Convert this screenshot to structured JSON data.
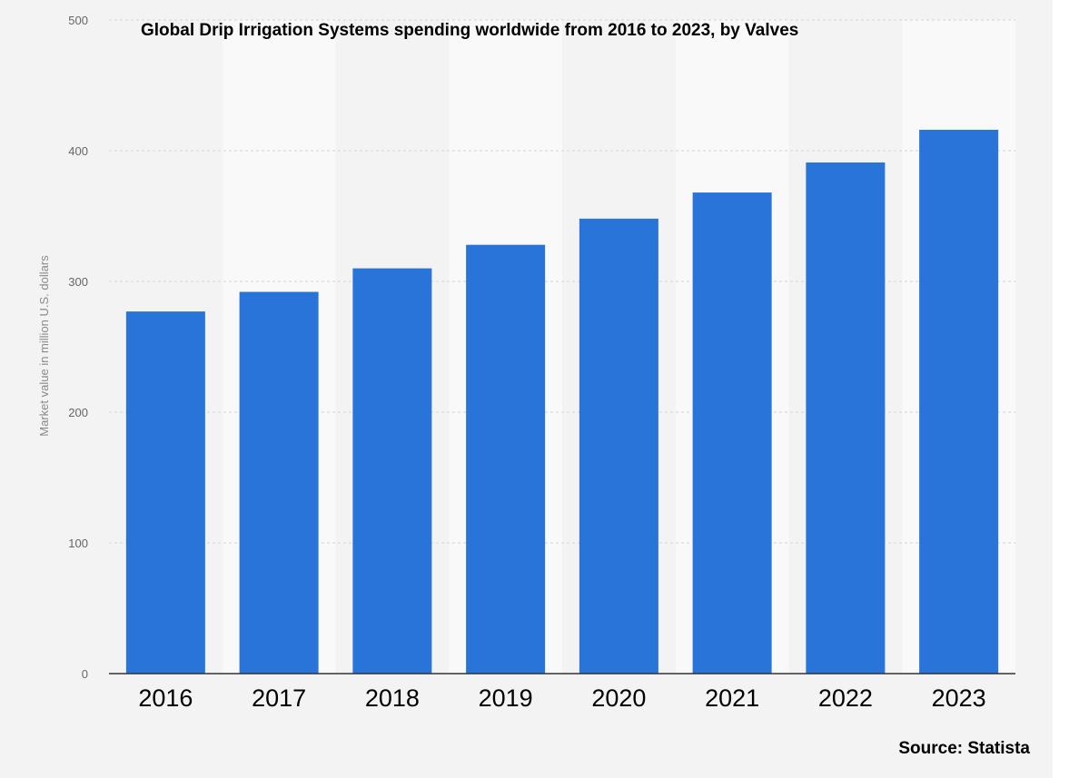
{
  "chart_data": {
    "type": "bar",
    "title": "Global Drip Irrigation Systems spending worldwide from 2016 to 2023, by Valves",
    "xlabel": "",
    "ylabel": "Market value in million U.S. dollars",
    "categories": [
      "2016",
      "2017",
      "2018",
      "2019",
      "2020",
      "2021",
      "2022",
      "2023"
    ],
    "values": [
      277,
      292,
      310,
      328,
      348,
      368,
      391,
      416
    ],
    "ylim": [
      0,
      500
    ],
    "yticks": [
      "0",
      "100",
      "200",
      "300",
      "400",
      "500"
    ],
    "grid": true,
    "bar_color": "#2874d8",
    "source": "Source: Statista"
  }
}
